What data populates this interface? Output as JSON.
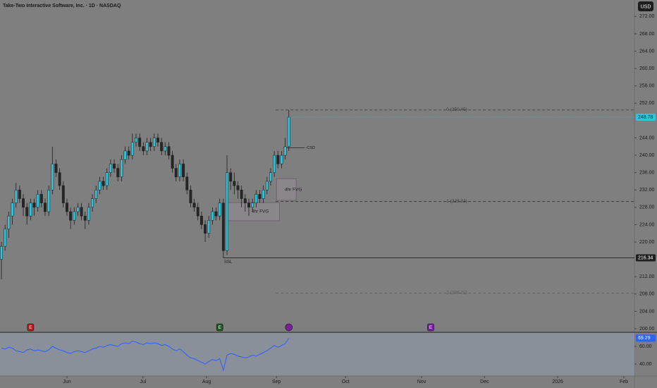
{
  "chart_data": {
    "type": "candlestick",
    "title": "Take-Two Interactive Software, Inc. · 1D · NASDAQ",
    "currency": "USD",
    "up_color": "#2ec4dc",
    "down_color": "#262626",
    "categories": [
      null,
      null,
      null,
      null,
      null,
      null,
      null,
      null,
      null,
      null,
      null,
      null,
      null,
      null,
      null,
      null,
      null,
      null,
      null,
      null,
      null,
      null,
      null,
      null,
      null,
      null,
      null,
      null,
      null,
      null,
      null,
      null,
      null,
      null,
      null,
      null,
      null,
      null,
      null,
      null,
      null,
      null,
      null,
      null,
      null,
      null,
      null,
      null,
      null,
      null,
      null,
      null,
      null,
      null,
      null,
      null,
      null,
      null,
      null,
      null,
      null,
      null,
      null,
      null,
      null,
      null,
      null,
      null,
      null,
      null,
      null,
      null,
      null,
      null,
      null,
      null,
      null,
      null,
      null,
      null
    ],
    "ohlc": [
      [
        216,
        220,
        211.4,
        219
      ],
      [
        219,
        224,
        218,
        223
      ],
      [
        223,
        227,
        221,
        226
      ],
      [
        226,
        230,
        224,
        229
      ],
      [
        229,
        233.6,
        228,
        232
      ],
      [
        232,
        233,
        229,
        230
      ],
      [
        230,
        231,
        226,
        228
      ],
      [
        228,
        229,
        224,
        226
      ],
      [
        226,
        230,
        225,
        229
      ],
      [
        229,
        230,
        226,
        228
      ],
      [
        228,
        232,
        227,
        231
      ],
      [
        231,
        232,
        228,
        229
      ],
      [
        229,
        230,
        226,
        227
      ],
      [
        227,
        233,
        226,
        232
      ],
      [
        232,
        242,
        231,
        238
      ],
      [
        238,
        239,
        235,
        236
      ],
      [
        236,
        237,
        232,
        233
      ],
      [
        233,
        234,
        228,
        229
      ],
      [
        229,
        230,
        226,
        227
      ],
      [
        227,
        228,
        223,
        225
      ],
      [
        225,
        228,
        224,
        227
      ],
      [
        227,
        229,
        226,
        228
      ],
      [
        228,
        229,
        225,
        226
      ],
      [
        226,
        227,
        223,
        225
      ],
      [
        225,
        229,
        224,
        228
      ],
      [
        228,
        231,
        227,
        230
      ],
      [
        230,
        233,
        229,
        232
      ],
      [
        232,
        235,
        231,
        234
      ],
      [
        234,
        235,
        232,
        233
      ],
      [
        233,
        237,
        232,
        236
      ],
      [
        236,
        239,
        235,
        238
      ],
      [
        238,
        239,
        236,
        237
      ],
      [
        237,
        238,
        234,
        235
      ],
      [
        235,
        240,
        234,
        239
      ],
      [
        239,
        242,
        238,
        241
      ],
      [
        241,
        242,
        239,
        240
      ],
      [
        240,
        245,
        239,
        243
      ],
      [
        243,
        245,
        242,
        244
      ],
      [
        244,
        245,
        241,
        242
      ],
      [
        242,
        243,
        240,
        241
      ],
      [
        241,
        244,
        240,
        243
      ],
      [
        243,
        244,
        241,
        242
      ],
      [
        242,
        245,
        241,
        244
      ],
      [
        244,
        245,
        242,
        243
      ],
      [
        243,
        244,
        240,
        241
      ],
      [
        241,
        243,
        240,
        242
      ],
      [
        242,
        243,
        239,
        240
      ],
      [
        240,
        241,
        236,
        237
      ],
      [
        237,
        238,
        234,
        235
      ],
      [
        235,
        239,
        234,
        238
      ],
      [
        238,
        239,
        234,
        235
      ],
      [
        235,
        236,
        231,
        232
      ],
      [
        232,
        233,
        228,
        229
      ],
      [
        229,
        230,
        227,
        228
      ],
      [
        228,
        229,
        225,
        226
      ],
      [
        226,
        227,
        223,
        224
      ],
      [
        224,
        225,
        220,
        222
      ],
      [
        222,
        226,
        221,
        225
      ],
      [
        225,
        228,
        224,
        227
      ],
      [
        227,
        228,
        225,
        226
      ],
      [
        226,
        230,
        225,
        229
      ],
      [
        229,
        230,
        216.34,
        218
      ],
      [
        218,
        240,
        217,
        236
      ],
      [
        236,
        237,
        232,
        234
      ],
      [
        234,
        236,
        231,
        233
      ],
      [
        233,
        234,
        230,
        232
      ],
      [
        232,
        233,
        228,
        230
      ],
      [
        230,
        231,
        227,
        229
      ],
      [
        229,
        230,
        226,
        228
      ],
      [
        228,
        230,
        227,
        229
      ],
      [
        229,
        232,
        228,
        231
      ],
      [
        231,
        232,
        229,
        230
      ],
      [
        230,
        233,
        229,
        232
      ],
      [
        232,
        235,
        231,
        234
      ],
      [
        234,
        237,
        233,
        236
      ],
      [
        236,
        241,
        235,
        240
      ],
      [
        240,
        241,
        237,
        238
      ],
      [
        238,
        241,
        237,
        240
      ],
      [
        240,
        244,
        239,
        242
      ],
      [
        242,
        250.45,
        241,
        248.78
      ]
    ],
    "ylim": [
      199.35,
      275.8
    ],
    "yticks": [
      {
        "value": 272,
        "label": "272.00"
      },
      {
        "value": 268,
        "label": "268.00"
      },
      {
        "value": 264,
        "label": "264.00"
      },
      {
        "value": 260,
        "label": "260.00"
      },
      {
        "value": 256,
        "label": "256.00"
      },
      {
        "value": 252,
        "label": "252.00"
      },
      {
        "value": 244,
        "label": "244.00"
      },
      {
        "value": 240,
        "label": "240.00"
      },
      {
        "value": 236,
        "label": "236.00"
      },
      {
        "value": 232,
        "label": "232.00"
      },
      {
        "value": 228,
        "label": "228.00"
      },
      {
        "value": 224,
        "label": "224.00"
      },
      {
        "value": 220,
        "label": "220.00"
      },
      {
        "value": 212,
        "label": "212.00"
      },
      {
        "value": 208,
        "label": "208.00"
      },
      {
        "value": 204,
        "label": "204.00"
      },
      {
        "value": 200,
        "label": "200.00"
      }
    ],
    "xlim": [
      -0.4,
      174
    ],
    "xticks": [
      {
        "value": 18,
        "label": "Jun"
      },
      {
        "value": 38.9,
        "label": "Jul"
      },
      {
        "value": 56.4,
        "label": "Aug"
      },
      {
        "value": 75.6,
        "label": "Sep"
      },
      {
        "value": 94.6,
        "label": "Oct"
      },
      {
        "value": 115.5,
        "label": "Nov"
      },
      {
        "value": 132.8,
        "label": "Dec"
      },
      {
        "value": 152.9,
        "label": "2026"
      },
      {
        "value": 171.1,
        "label": "Feb"
      }
    ],
    "levels": [
      {
        "label": "0 (250.45)",
        "value": 250.45
      },
      {
        "label": "1 (229.33)",
        "value": 229.33
      },
      {
        "label": "2 (208.21)",
        "value": 208.21
      }
    ],
    "lines": [
      {
        "label": "SSL",
        "value": 216.34
      }
    ],
    "marker": {
      "label": "-CSD",
      "value": 241.7
    },
    "zones": [
      {
        "label": "4hr FVG",
        "low": 229.6,
        "high": 234.6,
        "from": 75.6,
        "to": 81
      },
      {
        "label": "4hr FVG",
        "low": 224.9,
        "high": 229.1,
        "from": 62,
        "to": 76.4
      }
    ],
    "events": [
      {
        "label": "E",
        "at": 8,
        "color": "#b71c1c"
      },
      {
        "label": "E",
        "at": 60,
        "color": "#1b5e20"
      },
      {
        "label": "E",
        "at": 118,
        "color": "#7b1fa2"
      }
    ],
    "indicator": {
      "color": "#2962ff",
      "ylim": [
        26.4,
        75.2
      ],
      "yticks": [
        {
          "value": 60,
          "label": "60.00"
        },
        {
          "value": 40,
          "label": "40.00"
        }
      ],
      "values": [
        58,
        57,
        59,
        58,
        55,
        54,
        53,
        56,
        57,
        55,
        56,
        55,
        54,
        56,
        60,
        58,
        56,
        55,
        53,
        52,
        54,
        55,
        54,
        53,
        55,
        57,
        58,
        60,
        59,
        61,
        62,
        61,
        60,
        63,
        64,
        63,
        66,
        65,
        63,
        62,
        64,
        63,
        64,
        63,
        61,
        62,
        60,
        57,
        55,
        57,
        54,
        50,
        47,
        46,
        44,
        42,
        40,
        43,
        45,
        44,
        46,
        33,
        50,
        52,
        51,
        49,
        48,
        47,
        48,
        50,
        49,
        51,
        53,
        55,
        58,
        61,
        59,
        61,
        63,
        69.29
      ]
    }
  }
}
